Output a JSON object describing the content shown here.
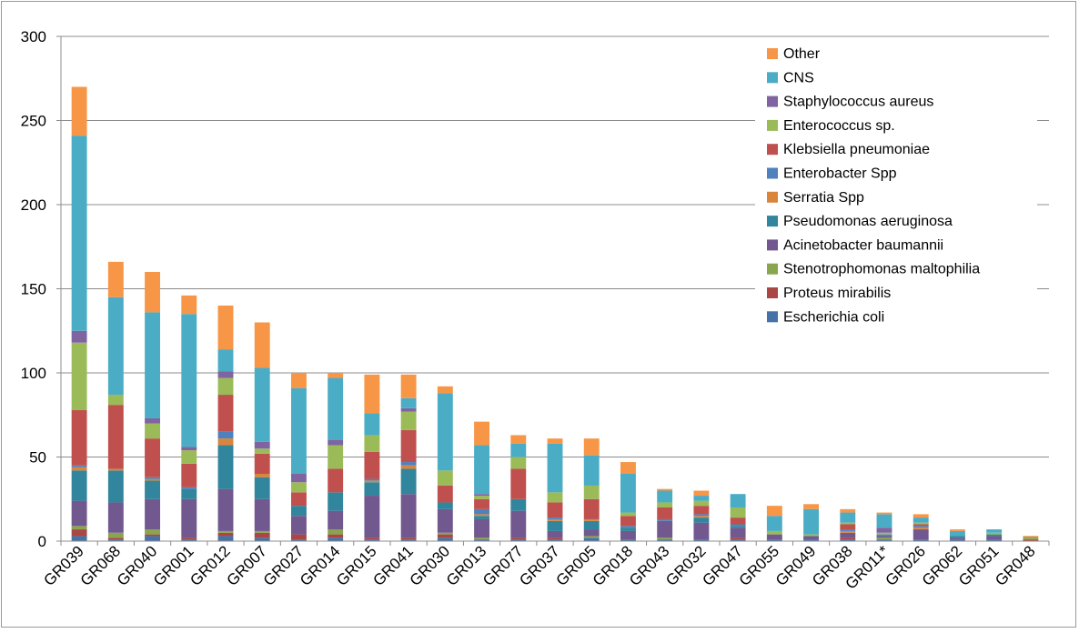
{
  "chart_data": {
    "type": "bar",
    "stacked": true,
    "title": "",
    "xlabel": "",
    "ylabel": "",
    "ylim": [
      0,
      300
    ],
    "yticks": [
      0,
      50,
      100,
      150,
      200,
      250,
      300
    ],
    "grid": true,
    "legend_position": "top-right",
    "categories": [
      "GR039",
      "GR068",
      "GR040",
      "GR001",
      "GR012",
      "GR007",
      "GR027",
      "GR014",
      "GR015",
      "GR041",
      "GR030",
      "GR013",
      "GR077",
      "GR037",
      "GR005",
      "GR018",
      "GR043",
      "GR032",
      "GR047",
      "GR055",
      "GR049",
      "GR038",
      "GR011*",
      "GR026",
      "GR062",
      "GR051",
      "GR048"
    ],
    "series": [
      {
        "name": "Escherichia coli",
        "color": "#4572a7",
        "values": [
          3,
          1,
          3,
          1,
          3,
          2,
          1,
          2,
          1,
          1,
          2,
          1,
          1,
          1,
          2,
          1,
          1,
          1,
          1,
          1,
          1,
          1,
          1,
          1,
          1,
          1,
          0
        ]
      },
      {
        "name": "Proteus mirabilis",
        "color": "#aa4643",
        "values": [
          4,
          1,
          1,
          1,
          2,
          3,
          3,
          2,
          1,
          1,
          2,
          0,
          1,
          1,
          0,
          0,
          0,
          0,
          1,
          0,
          0,
          1,
          0,
          0,
          0,
          0,
          1
        ]
      },
      {
        "name": "Stenotrophomonas maltophilia",
        "color": "#89a54e",
        "values": [
          2,
          3,
          3,
          0,
          1,
          1,
          0,
          3,
          0,
          0,
          1,
          1,
          0,
          0,
          1,
          0,
          1,
          0,
          0,
          0,
          0,
          0,
          1,
          0,
          0,
          0,
          1
        ]
      },
      {
        "name": "Acinetobacter baumannii",
        "color": "#71588f",
        "values": [
          15,
          18,
          18,
          23,
          25,
          19,
          11,
          11,
          25,
          26,
          14,
          11,
          16,
          4,
          4,
          5,
          10,
          10,
          6,
          3,
          2,
          3,
          1,
          6,
          1,
          2,
          0
        ]
      },
      {
        "name": "Pseudomonas aeruginosa",
        "color": "#31859c",
        "values": [
          18,
          19,
          11,
          6,
          26,
          13,
          6,
          11,
          8,
          15,
          4,
          2,
          7,
          6,
          5,
          2,
          0,
          3,
          1,
          0,
          0,
          0,
          0,
          0,
          1,
          1,
          0
        ]
      },
      {
        "name": "Serratia Spp",
        "color": "#d9853b",
        "values": [
          2,
          1,
          1,
          0,
          4,
          2,
          0,
          0,
          1,
          2,
          0,
          1,
          0,
          1,
          1,
          0,
          0,
          1,
          0,
          0,
          0,
          1,
          0,
          1,
          0,
          0,
          1
        ]
      },
      {
        "name": "Enterobacter Spp",
        "color": "#4f81bd",
        "values": [
          1,
          0,
          1,
          1,
          4,
          0,
          0,
          0,
          1,
          2,
          0,
          3,
          0,
          1,
          0,
          1,
          1,
          1,
          1,
          0,
          0,
          1,
          1,
          1,
          0,
          0,
          0
        ]
      },
      {
        "name": "Klebsiella pneumoniae",
        "color": "#c0504d",
        "values": [
          33,
          38,
          23,
          14,
          22,
          12,
          8,
          14,
          16,
          19,
          10,
          6,
          18,
          9,
          12,
          6,
          7,
          5,
          4,
          0,
          0,
          3,
          0,
          1,
          0,
          0,
          0
        ]
      },
      {
        "name": "Enterococcus sp.",
        "color": "#9bbb59",
        "values": [
          40,
          6,
          9,
          8,
          10,
          3,
          6,
          14,
          10,
          11,
          9,
          2,
          7,
          6,
          8,
          2,
          3,
          3,
          6,
          2,
          1,
          1,
          1,
          1,
          0,
          1,
          0
        ]
      },
      {
        "name": "Staphylococcus aureus",
        "color": "#8064a2",
        "values": [
          7,
          0,
          3,
          2,
          4,
          4,
          5,
          3,
          0,
          2,
          0,
          1,
          0,
          0,
          0,
          0,
          0,
          0,
          0,
          0,
          0,
          0,
          3,
          0,
          0,
          0,
          0
        ]
      },
      {
        "name": "CNS",
        "color": "#4bacc6",
        "values": [
          116,
          58,
          63,
          79,
          13,
          44,
          51,
          37,
          13,
          6,
          46,
          29,
          8,
          29,
          18,
          23,
          7,
          3,
          8,
          9,
          15,
          6,
          8,
          3,
          3,
          2,
          0
        ]
      },
      {
        "name": "Other",
        "color": "#f79646",
        "values": [
          29,
          21,
          24,
          11,
          26,
          27,
          9,
          3,
          23,
          14,
          4,
          14,
          5,
          3,
          10,
          7,
          1,
          3,
          0,
          6,
          3,
          2,
          1,
          2,
          1,
          0,
          0
        ]
      }
    ]
  }
}
